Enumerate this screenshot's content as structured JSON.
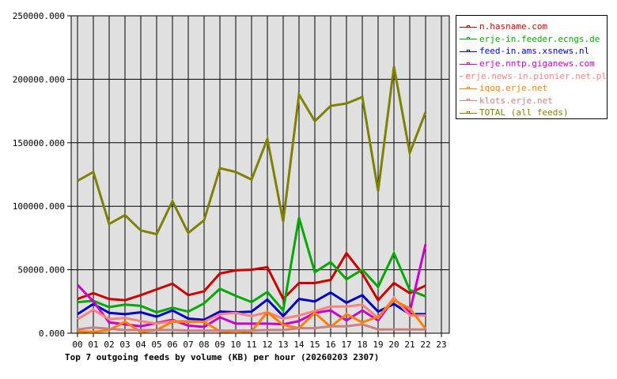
{
  "chart_data": {
    "type": "line",
    "title": "Top 7 outgoing feeds by volume (KB) per hour (20260203 2307)",
    "xlabel": "",
    "ylabel": "",
    "ylim": [
      0,
      250000
    ],
    "grid": true,
    "legend_position": "right",
    "y_ticks": [
      "0.000",
      "50000.000",
      "100000.000",
      "150000.000",
      "200000.000",
      "250000.000"
    ],
    "categories": [
      "00",
      "01",
      "02",
      "03",
      "04",
      "05",
      "06",
      "07",
      "08",
      "09",
      "10",
      "11",
      "12",
      "13",
      "14",
      "15",
      "16",
      "17",
      "18",
      "19",
      "20",
      "21",
      "22",
      "23"
    ],
    "series": [
      {
        "name": "n.hasname.com",
        "color": "#cc0000",
        "values": [
          27000,
          31500,
          27000,
          26000,
          30000,
          34500,
          39000,
          30000,
          33000,
          47000,
          49500,
          50000,
          52000,
          27000,
          39500,
          39500,
          42000,
          63000,
          47000,
          26000,
          39500,
          31500,
          37500
        ]
      },
      {
        "name": "erje-in.feeder.ecngs.de",
        "color": "#00aa00",
        "values": [
          24500,
          25500,
          20500,
          22500,
          21500,
          16500,
          20000,
          17000,
          23500,
          35000,
          29500,
          24500,
          32500,
          18000,
          91000,
          48000,
          56000,
          42500,
          50000,
          36500,
          63000,
          34000,
          29000
        ]
      },
      {
        "name": "feed-in.ams.xsnews.nl",
        "color": "#0000cc",
        "values": [
          15000,
          23000,
          16000,
          15000,
          16500,
          13000,
          18000,
          11500,
          10500,
          17000,
          16500,
          17000,
          26500,
          13500,
          27000,
          25000,
          32000,
          24000,
          30000,
          17000,
          23000,
          15000,
          15000
        ]
      },
      {
        "name": "erje.nntp.giganews.com",
        "color": "#cc00cc",
        "values": [
          38000,
          25000,
          8500,
          7000,
          5500,
          8000,
          10500,
          6000,
          5000,
          12500,
          7500,
          7500,
          7500,
          7000,
          9500,
          16000,
          18000,
          10000,
          18000,
          10000,
          27000,
          16500,
          70000
        ]
      },
      {
        "name": "erje.news-in.pionier.net.pl",
        "color": "#ff8080",
        "values": [
          11000,
          18500,
          11000,
          12000,
          9500,
          7500,
          9500,
          9500,
          9000,
          15000,
          16000,
          13500,
          16500,
          11500,
          14000,
          17500,
          21000,
          21000,
          22500,
          12000,
          28000,
          14000,
          14000
        ]
      },
      {
        "name": "iqoq.erje.net",
        "color": "#ff8000",
        "values": [
          1500,
          1000,
          2500,
          9000,
          1000,
          2500,
          9000,
          9000,
          9000,
          1500,
          1000,
          1500,
          16500,
          6500,
          4000,
          16000,
          5000,
          15000,
          8500,
          13000,
          26000,
          19500,
          3500
        ]
      },
      {
        "name": "klots.erje.net",
        "color": "#cc8080",
        "values": [
          3000,
          4500,
          3500,
          2500,
          2500,
          2500,
          2500,
          2000,
          2000,
          2000,
          2000,
          2000,
          2500,
          2500,
          4000,
          4000,
          5500,
          5500,
          7000,
          3000,
          3000,
          3000,
          3000
        ]
      },
      {
        "name": "TOTAL (all feeds)",
        "color": "#808000",
        "values": [
          120000,
          127000,
          86000,
          93000,
          81000,
          78000,
          104000,
          79000,
          89000,
          130000,
          127000,
          121000,
          153000,
          88000,
          188000,
          167000,
          179000,
          181000,
          186000,
          112000,
          210000,
          142000,
          174000
        ]
      }
    ]
  },
  "colors": {
    "plot_background": "#e0e0e0",
    "grid": "#000000"
  }
}
